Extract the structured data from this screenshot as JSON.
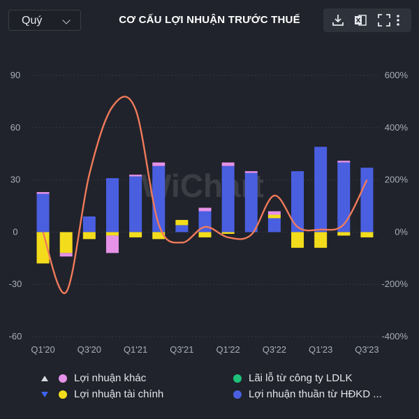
{
  "header": {
    "period_select": "Quý",
    "title": "CƠ CẤU LỢI NHUẬN TRƯỚC THUẾ"
  },
  "toolbar": {
    "icons": [
      "download-icon",
      "excel-icon",
      "fullscreen-icon",
      "more-vertical-icon"
    ]
  },
  "watermark": "WiChart",
  "colors": {
    "background": "#20232b",
    "grid": "#363a44",
    "blue": "#4a5fe0",
    "yellow": "#f3dc1c",
    "pink": "#e592e8",
    "green": "#1fc07a",
    "line": "#f07a5a"
  },
  "chart_data": {
    "type": "bar",
    "stacked": true,
    "title": "CƠ CẤU LỢI NHUẬN TRƯỚC THUẾ",
    "categories": [
      "Q1'20",
      "Q2'20",
      "Q3'20",
      "Q4'20",
      "Q1'21",
      "Q2'21",
      "Q3'21",
      "Q4'21",
      "Q1'22",
      "Q2'22",
      "Q3'22",
      "Q4'22",
      "Q1'23",
      "Q2'23",
      "Q3'23"
    ],
    "x_tick_labels": [
      "Q1'20",
      "Q3'20",
      "Q1'21",
      "Q3'21",
      "Q1'22",
      "Q3'22",
      "Q1'23",
      "Q3'23"
    ],
    "y_left": {
      "ticks": [
        "90",
        "60",
        "30",
        "0",
        "-30",
        "-60"
      ],
      "range": [
        -60,
        90
      ]
    },
    "y_right": {
      "ticks": [
        "600%",
        "400%",
        "200%",
        "0%",
        "-200%",
        "-400%"
      ],
      "range": [
        -400,
        600
      ]
    },
    "series": [
      {
        "name": "Lợi nhuận thuần từ HĐKD ...",
        "color": "#4a5fe0",
        "axis": "left",
        "values": [
          22,
          0,
          9,
          31,
          32,
          38,
          4,
          12,
          38,
          34,
          8,
          35,
          49,
          40,
          37
        ]
      },
      {
        "name": "Lợi nhuận tài chính",
        "color": "#f3dc1c",
        "axis": "left",
        "values": [
          -18,
          -12,
          -4,
          -2,
          -3,
          -4,
          3,
          -3,
          -1,
          0,
          2,
          -9,
          -9,
          -2,
          -3
        ]
      },
      {
        "name": "Lợi nhuận khác",
        "color": "#e592e8",
        "axis": "left",
        "values": [
          1,
          -2,
          0,
          -10,
          1,
          2,
          0,
          2,
          2,
          1,
          2,
          0,
          0,
          1,
          0
        ]
      },
      {
        "name": "Lãi lỗ từ công ty LDLK",
        "color": "#1fc07a",
        "axis": "left",
        "values": [
          0,
          0,
          0,
          0,
          0,
          0,
          0,
          0,
          0,
          0,
          0,
          0,
          0,
          0,
          0
        ]
      }
    ],
    "line_series": {
      "color": "#f07a5a",
      "axis": "right",
      "values": [
        0,
        -230,
        220,
        480,
        470,
        30,
        -40,
        20,
        -20,
        -10,
        140,
        20,
        10,
        30,
        200
      ]
    },
    "legend": {
      "placement": "bottom",
      "items": [
        {
          "label": "Lợi nhuận khác",
          "color": "#e592e8",
          "marker": "up"
        },
        {
          "label": "Lãi lỗ từ công ty LDLK",
          "color": "#1fc07a"
        },
        {
          "label": "Lợi nhuận tài chính",
          "color": "#f3dc1c",
          "marker": "down"
        },
        {
          "label": "Lợi nhuận thuần từ HĐKD ...",
          "color": "#4a5fe0"
        }
      ]
    },
    "grid": true
  }
}
